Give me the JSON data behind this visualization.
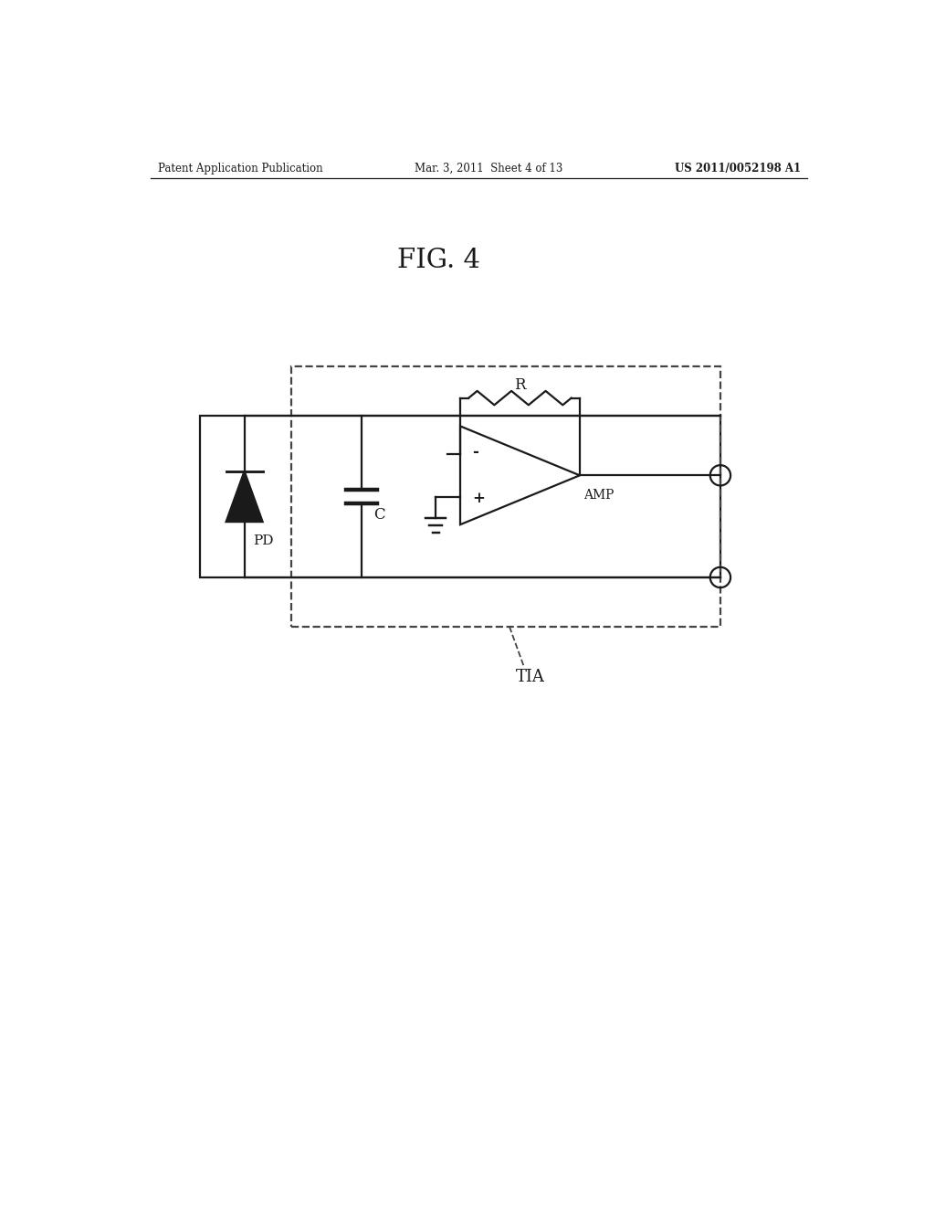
{
  "title": "FIG. 4",
  "header_left": "Patent Application Publication",
  "header_mid": "Mar. 3, 2011  Sheet 4 of 13",
  "header_right": "US 2011/0052198 A1",
  "bg_color": "#ffffff",
  "line_color": "#1a1a1a",
  "dashed_color": "#444444",
  "label_PD": "PD",
  "label_C": "C",
  "label_R": "R",
  "label_AMP": "AMP",
  "label_TIA": "TIA",
  "label_minus": "-",
  "label_plus": "+"
}
